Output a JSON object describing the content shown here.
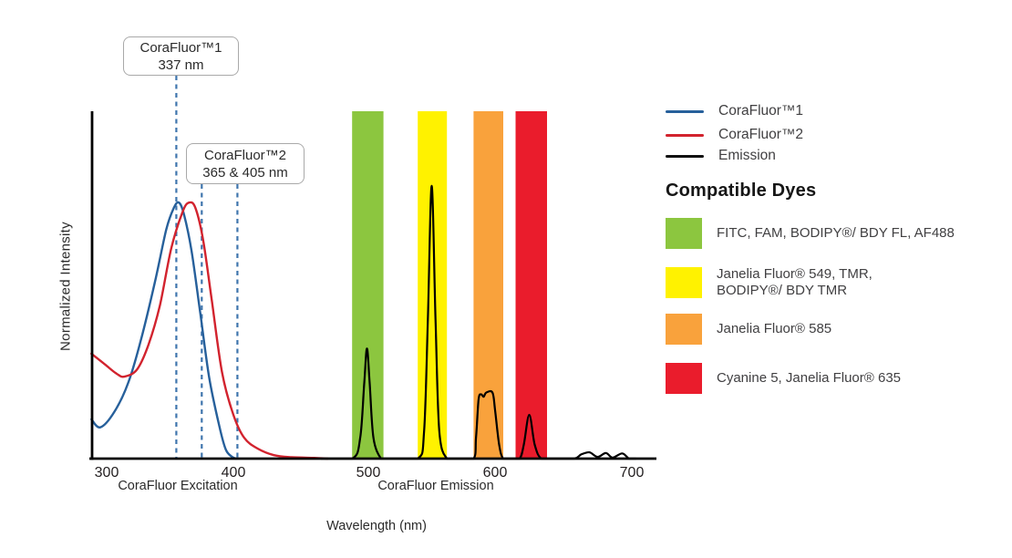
{
  "chart": {
    "y_axis_label": "Normalized Intensity",
    "x_axis_title": "Wavelength (nm)",
    "excitation_section_label": "CoraFluor Excitation",
    "emission_section_label": "CoraFluor Emission",
    "annotation_boxes": [
      {
        "line1": "CoraFluor™1",
        "line2": "337 nm"
      },
      {
        "line1": "CoraFluor™2",
        "line2": "365 & 405 nm"
      }
    ],
    "marker_color": "#3F75AD",
    "axis_color": "#000000"
  },
  "legend": {
    "series": [
      {
        "label": "CoraFluor™1",
        "color": "#27609B"
      },
      {
        "label": "CoraFluor™2",
        "color": "#D2232E"
      },
      {
        "label": "Emission",
        "color": "#111111"
      }
    ],
    "dyes_heading": "Compatible Dyes",
    "dyes": [
      {
        "color": "#8CC63F",
        "line1": "FITC, FAM, BODIPY®/ BDY FL, AF488",
        "line2": ""
      },
      {
        "color": "#FFF200",
        "line1": "Janelia Fluor® 549, TMR,",
        "line2": "BODIPY®/ BDY TMR"
      },
      {
        "color": "#F9A23C",
        "line1": "Janelia Fluor® 585",
        "line2": ""
      },
      {
        "color": "#EA1C2C",
        "line1": "Cyanine 5, Janelia Fluor® 635",
        "line2": ""
      }
    ]
  },
  "chart_data": {
    "type": "line",
    "title": "",
    "xlabel": "Wavelength (nm)",
    "ylabel": "Normalized Intensity",
    "xlim": [
      288,
      718
    ],
    "ylim": [
      0,
      1
    ],
    "x_ticks": [
      300,
      400,
      500,
      600,
      700
    ],
    "grid": false,
    "legend_position": "right",
    "markers": [
      {
        "nm": 337,
        "x_drawn_nm": 355,
        "label": "CoraFluor™1 337 nm"
      },
      {
        "nm": 365,
        "x_drawn_nm": 375,
        "label": "CoraFluor™2 365 nm"
      },
      {
        "nm": 405,
        "x_drawn_nm": 403,
        "label": "CoraFluor™2 405 nm"
      }
    ],
    "bands": [
      {
        "dyes": "FITC, FAM, BODIPY®/ BDY FL, AF488",
        "color": "#8CC63F",
        "nm": [
          488,
          512
        ]
      },
      {
        "dyes": "Janelia Fluor® 549, TMR, BODIPY®/ BDY TMR",
        "color": "#FFF200",
        "nm": [
          539,
          562
        ]
      },
      {
        "dyes": "Janelia Fluor® 585",
        "color": "#F9A23C",
        "nm": [
          583,
          606
        ]
      },
      {
        "dyes": "Cyanine 5, Janelia Fluor® 635",
        "color": "#EA1C2C",
        "nm": [
          615,
          638
        ]
      }
    ],
    "series": [
      {
        "name": "corafluor1-excitation",
        "label": "CoraFluor™1",
        "color": "#27609B",
        "width": 2.4,
        "points": [
          [
            288,
            0.113
          ],
          [
            295,
            0.09
          ],
          [
            306,
            0.134
          ],
          [
            317,
            0.218
          ],
          [
            327,
            0.341
          ],
          [
            338,
            0.507
          ],
          [
            347,
            0.659
          ],
          [
            353,
            0.722
          ],
          [
            357,
            0.737
          ],
          [
            361,
            0.703
          ],
          [
            367,
            0.598
          ],
          [
            374,
            0.415
          ],
          [
            381,
            0.231
          ],
          [
            389,
            0.092
          ],
          [
            394,
            0.026
          ],
          [
            399,
            0.005
          ],
          [
            402,
            0
          ]
        ]
      },
      {
        "name": "corafluor2-excitation",
        "label": "CoraFluor™2",
        "color": "#D2232E",
        "width": 2.4,
        "points": [
          [
            288,
            0.302
          ],
          [
            299,
            0.27
          ],
          [
            308,
            0.244
          ],
          [
            314,
            0.236
          ],
          [
            324,
            0.257
          ],
          [
            333,
            0.328
          ],
          [
            342,
            0.441
          ],
          [
            351,
            0.606
          ],
          [
            360,
            0.711
          ],
          [
            365,
            0.737
          ],
          [
            370,
            0.722
          ],
          [
            376,
            0.632
          ],
          [
            383,
            0.454
          ],
          [
            391,
            0.249
          ],
          [
            400,
            0.126
          ],
          [
            408,
            0.06
          ],
          [
            418,
            0.029
          ],
          [
            430,
            0.01
          ],
          [
            443,
            0.004
          ],
          [
            460,
            0.002
          ],
          [
            470,
            0
          ]
        ]
      },
      {
        "name": "emission",
        "label": "Emission",
        "color": "#000000",
        "width": 2.2,
        "points": [
          [
            465,
            0
          ],
          [
            488,
            0
          ],
          [
            494,
            0.06
          ],
          [
            497,
            0.22
          ],
          [
            499,
            0.317
          ],
          [
            501,
            0.22
          ],
          [
            504,
            0.06
          ],
          [
            510,
            0
          ],
          [
            515,
            0
          ],
          [
            539,
            0
          ],
          [
            544,
            0.08
          ],
          [
            547,
            0.4
          ],
          [
            550,
            0.785
          ],
          [
            553,
            0.4
          ],
          [
            556,
            0.08
          ],
          [
            562,
            0
          ],
          [
            570,
            0
          ],
          [
            583,
            0
          ],
          [
            585,
            0.06
          ],
          [
            587,
            0.17
          ],
          [
            589,
            0.185
          ],
          [
            591,
            0.178
          ],
          [
            593,
            0.19
          ],
          [
            598,
            0.19
          ],
          [
            600,
            0.14
          ],
          [
            603,
            0.04
          ],
          [
            606,
            0
          ],
          [
            612,
            0
          ],
          [
            618,
            0
          ],
          [
            621,
            0.04
          ],
          [
            625,
            0.126
          ],
          [
            629,
            0.04
          ],
          [
            634,
            0
          ],
          [
            645,
            0
          ],
          [
            658,
            0
          ],
          [
            663,
            0.012
          ],
          [
            669,
            0.018
          ],
          [
            675,
            0.005
          ],
          [
            681,
            0.016
          ],
          [
            686,
            0.003
          ],
          [
            693,
            0.015
          ],
          [
            698,
            0
          ],
          [
            703,
            0
          ]
        ]
      }
    ]
  }
}
